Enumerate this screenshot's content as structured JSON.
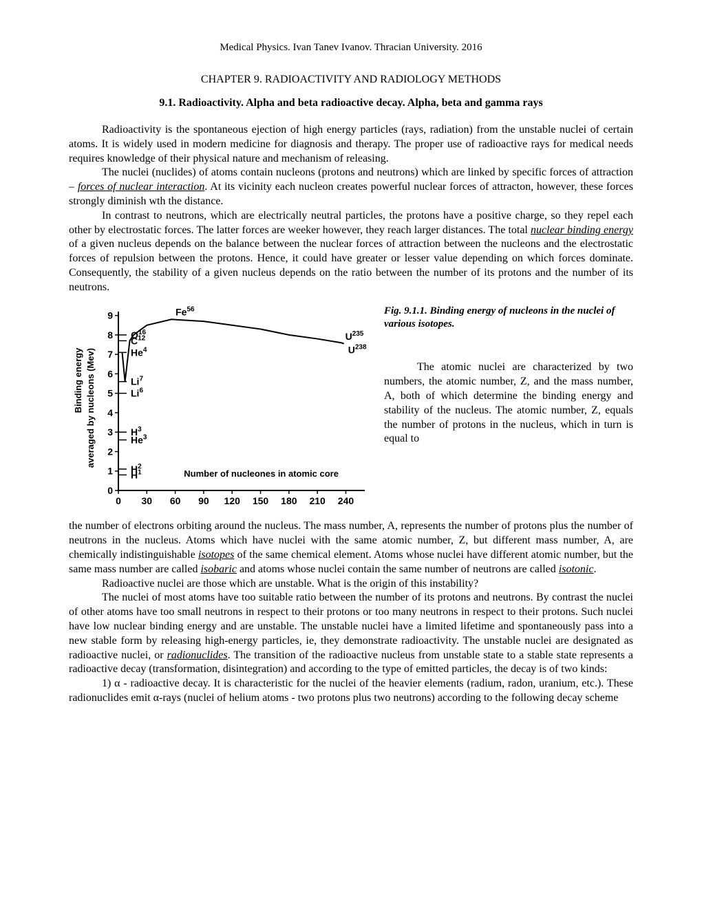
{
  "header": "Medical Physics. Ivan Tanev Ivanov. Thracian University. 2016",
  "chapter": "CHAPTER 9. RADIOACTIVITY AND RADIOLOGY METHODS",
  "section": "9.1. Radioactivity. Alpha and beta radioactive decay. Alpha, beta and gamma rays",
  "paras": {
    "p1": "Radioactivity is the spontaneous ejection of high energy particles (rays, radiation) from the unstable nuclei of certain atoms. It is widely used in modern medicine for diagnosis and therapy. The proper use of radioactive rays for medical needs requires knowledge of their physical nature and mechanism of releasing.",
    "p2a": "The nuclei (nuclides) of atoms contain nucleons (protons and neutrons) which are linked by specific forces of attraction – ",
    "p2_link": "forces of nuclear interaction",
    "p2b": ". At its vicinity each nucleon creates powerful nuclear forces of attracton, however, these forces strongly diminish wth the distance.",
    "p3a": "In contrast to neutrons, which are electrically neutral particles, the protons have a positive charge, so they repel each other by electrostatic forces. The latter forces are weeker however, they reach larger distances. The total ",
    "p3_link": "nuclear binding energy",
    "p3b": " of a given nucleus depends on the balance between the nuclear forces of attraction between the nucleons and the electrostatic forces of repulsion between the protons. Hence, it could have greater or lesser value depending on which forces dominate. Consequently, the stability of a given nucleus depends on the ratio between the number of its protons and the number of its neutrons."
  },
  "figure": {
    "caption": "Fig. 9.1.1. Binding energy of nucleons in the nuclei of various isotopes.",
    "right_para": "The atomic nuclei are characterized by two numbers, the atomic number, Z, and the mass number, A, both of which determine the binding energy and stability of the nucleus. The atomic number, Z, equals the number of protons in the nucleus, which in turn is equal to ",
    "chart": {
      "type": "line",
      "background_color": "#ffffff",
      "axis_color": "#000000",
      "curve_color": "#000000",
      "xlim": [
        0,
        260
      ],
      "ylim": [
        0,
        9.2
      ],
      "xticks": [
        0,
        30,
        60,
        90,
        120,
        150,
        180,
        210,
        240
      ],
      "yticks": [
        0,
        1,
        2,
        3,
        4,
        5,
        6,
        7,
        8,
        9
      ],
      "ylabel_line1": "Binding energy",
      "ylabel_line2": "averaged by nucleons (Mev)",
      "xlabel": "Number of nucleones in atomic core",
      "curve_points": [
        [
          4,
          7.1
        ],
        [
          7,
          5.6
        ],
        [
          12,
          7.7
        ],
        [
          16,
          8.0
        ],
        [
          30,
          8.5
        ],
        [
          56,
          8.8
        ],
        [
          90,
          8.7
        ],
        [
          120,
          8.5
        ],
        [
          150,
          8.3
        ],
        [
          180,
          8.0
        ],
        [
          210,
          7.8
        ],
        [
          235,
          7.6
        ],
        [
          238,
          7.55
        ]
      ],
      "tick_points": [
        {
          "x": 1,
          "y": 0.8,
          "label": "H",
          "sup": "1"
        },
        {
          "x": 2,
          "y": 1.1,
          "label": "H",
          "sup": "2"
        },
        {
          "x": 3,
          "y": 2.6,
          "label": "He",
          "sup": "3"
        },
        {
          "x": 3,
          "y": 3.0,
          "label": "H",
          "sup": "3"
        },
        {
          "x": 6,
          "y": 5.0,
          "label": "Li",
          "sup": "6"
        },
        {
          "x": 7,
          "y": 5.6,
          "label": "Li",
          "sup": "7"
        },
        {
          "x": 4,
          "y": 7.1,
          "label": "He",
          "sup": "4"
        },
        {
          "x": 12,
          "y": 7.7,
          "label": "C",
          "sup": "12"
        },
        {
          "x": 16,
          "y": 8.0,
          "label": "O",
          "sup": "16"
        },
        {
          "x": 56,
          "y": 8.8,
          "label": "Fe",
          "sup": "56"
        },
        {
          "x": 235,
          "y": 7.6,
          "label": "U",
          "sup": "235"
        },
        {
          "x": 238,
          "y": 7.55,
          "label": "U",
          "sup": "238"
        }
      ]
    }
  },
  "after": {
    "p4a": "the number of electrons orbiting around the nucleus. The mass number, A, represents the number of protons plus the number of neutrons in the nucleus. Atoms which have nuclei with the same atomic number, Z, but different mass number, A, are chemically indistinguishable ",
    "p4_link1": "isotopes",
    "p4b": " of the same chemical element. Atoms whose nuclei have different atomic number, but the same mass number are called ",
    "p4_link2": "isobaric",
    "p4c": " and atoms whose nuclei contain the same number of neutrons are called ",
    "p4_link3": "isotonic",
    "p4d": ".",
    "p5": "Radioactive nuclei are those which are unstable. What is the origin of this instability?",
    "p6a": "The nuclei of most atoms have too suitable ratio between the number of its protons and neutrons. By contrast the nuclei of other atoms have too small neutrons in respect to their protons or too many neutrons in respect to their protons. Such nuclei have low nuclear binding energy and are unstable. The unstable nuclei have a limited lifetime and spontaneously pass into a new stable form by releasing high-energy particles, ie, they demonstrate radioactivity. The unstable nuclei are designated as radioactive nuclei, or ",
    "p6_link": "radionuclides",
    "p6b": ". The transition of the radioactive nucleus from unstable state to a stable state represents a radioactive decay (transformation, disintegration) and according to the type of emitted particles, the decay is of two kinds:",
    "p7": "1) α - radioactive decay. It is characteristic for the nuclei of the heavier elements (radium, radon, uranium, etc.). These radionuclides emit α-rays (nuclei of helium atoms - two protons plus two neutrons) according to the following decay scheme"
  }
}
